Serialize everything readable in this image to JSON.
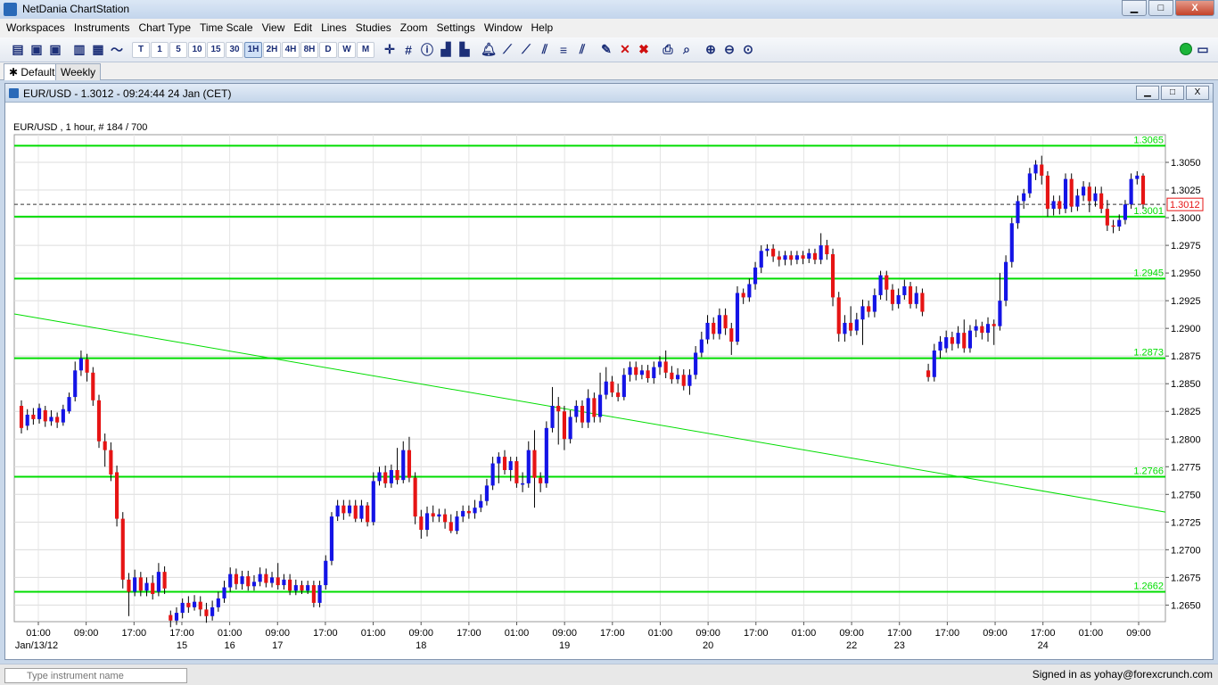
{
  "window": {
    "title": "NetDania ChartStation",
    "minimize": "▁",
    "maximize": "□",
    "close": "X"
  },
  "menu": [
    "Workspaces",
    "Instruments",
    "Chart Type",
    "Time Scale",
    "View",
    "Edit",
    "Lines",
    "Studies",
    "Zoom",
    "Settings",
    "Window",
    "Help"
  ],
  "toolbar": {
    "timescales": [
      "T",
      "1",
      "5",
      "10",
      "15",
      "30",
      "1H",
      "2H",
      "4H",
      "8H",
      "D",
      "W",
      "M"
    ],
    "active_timescale": "1H"
  },
  "tabs": {
    "default_label": "Default",
    "weekly_label": "Weekly"
  },
  "chart_window": {
    "title": "EUR/USD - 1.3012 - 09:24:44  24 Jan (CET)"
  },
  "status": {
    "search_placeholder": "Type instrument name",
    "signed_in": "Signed in as yohay@forexcrunch.com"
  },
  "chart_data": {
    "type": "candlestick",
    "info_label": "EUR/USD , 1 hour, # 184 / 700",
    "current_price": "1.3012",
    "ylim": [
      1.2635,
      1.3075
    ],
    "yticks": [
      "1.3050",
      "1.3025",
      "1.3000",
      "1.2975",
      "1.2950",
      "1.2925",
      "1.2900",
      "1.2875",
      "1.2850",
      "1.2825",
      "1.2800",
      "1.2775",
      "1.2750",
      "1.2725",
      "1.2700",
      "1.2675",
      "1.2650"
    ],
    "x_time_labels": [
      "01:00",
      "09:00",
      "17:00",
      "17:00",
      "01:00",
      "09:00",
      "17:00",
      "01:00",
      "09:00",
      "17:00",
      "01:00",
      "09:00",
      "17:00",
      "01:00",
      "09:00",
      "17:00",
      "01:00",
      "09:00",
      "17:00",
      "17:00",
      "09:00",
      "17:00",
      "01:00",
      "09:00"
    ],
    "x_date_labels": [
      "Jan/13/12",
      "15",
      "16",
      "17",
      "18",
      "19",
      "20",
      "22",
      "23",
      "24"
    ],
    "horizontal_lines": [
      {
        "value": 1.3065,
        "label": "1.3065"
      },
      {
        "value": 1.3001,
        "label": "1.3001"
      },
      {
        "value": 1.2945,
        "label": "1.2945"
      },
      {
        "value": 1.2873,
        "label": "1.2873"
      },
      {
        "value": 1.2766,
        "label": "1.2766"
      },
      {
        "value": 1.2662,
        "label": "1.2662"
      }
    ],
    "trend_line": {
      "start": 1.2913,
      "end": 1.2734
    },
    "candles": [
      [
        1.283,
        1.281,
        1.2835,
        1.2805
      ],
      [
        1.2812,
        1.2822,
        1.2827,
        1.2808
      ],
      [
        1.2822,
        1.2818,
        1.2828,
        1.2813
      ],
      [
        1.2818,
        1.2828,
        1.2832,
        1.2814
      ],
      [
        1.2826,
        1.2816,
        1.283,
        1.2811
      ],
      [
        1.2816,
        1.282,
        1.2826,
        1.2812
      ],
      [
        1.282,
        1.2815,
        1.2824,
        1.281
      ],
      [
        1.2815,
        1.2827,
        1.2831,
        1.2812
      ],
      [
        1.2825,
        1.2838,
        1.2842,
        1.2823
      ],
      [
        1.2838,
        1.2862,
        1.287,
        1.2834
      ],
      [
        1.2862,
        1.2873,
        1.288,
        1.2857
      ],
      [
        1.2872,
        1.286,
        1.2877,
        1.2852
      ],
      [
        1.286,
        1.2835,
        1.2865,
        1.283
      ],
      [
        1.2835,
        1.2798,
        1.284,
        1.2792
      ],
      [
        1.2798,
        1.279,
        1.2805,
        1.2775
      ],
      [
        1.279,
        1.2768,
        1.2797,
        1.2762
      ],
      [
        1.277,
        1.2728,
        1.2776,
        1.2721
      ],
      [
        1.2728,
        1.2673,
        1.2734,
        1.2665
      ],
      [
        1.2673,
        1.2662,
        1.2679,
        1.264
      ],
      [
        1.2662,
        1.2675,
        1.2682,
        1.2658
      ],
      [
        1.2675,
        1.2663,
        1.268,
        1.2658
      ],
      [
        1.2663,
        1.267,
        1.2675,
        1.2658
      ],
      [
        1.267,
        1.266,
        1.2677,
        1.2655
      ],
      [
        1.2662,
        1.268,
        1.2688,
        1.2658
      ],
      [
        1.268,
        1.2665,
        1.2685,
        1.266
      ],
      [
        1.2641,
        1.2636,
        1.2645,
        1.263
      ],
      [
        1.2636,
        1.2643,
        1.2648,
        1.2632
      ],
      [
        1.2643,
        1.2652,
        1.2656,
        1.2638
      ],
      [
        1.2652,
        1.2648,
        1.2658,
        1.2643
      ],
      [
        1.2648,
        1.2653,
        1.2659,
        1.2645
      ],
      [
        1.2653,
        1.2646,
        1.2658,
        1.264
      ],
      [
        1.2646,
        1.264,
        1.2652,
        1.2634
      ],
      [
        1.264,
        1.2648,
        1.2654,
        1.2636
      ],
      [
        1.2648,
        1.2656,
        1.2662,
        1.2644
      ],
      [
        1.2656,
        1.2666,
        1.2672,
        1.2652
      ],
      [
        1.2666,
        1.2678,
        1.2684,
        1.2662
      ],
      [
        1.2678,
        1.2669,
        1.2683,
        1.2664
      ],
      [
        1.2669,
        1.2676,
        1.2681,
        1.2664
      ],
      [
        1.2676,
        1.2667,
        1.2681,
        1.2663
      ],
      [
        1.2667,
        1.2671,
        1.2677,
        1.2663
      ],
      [
        1.2671,
        1.2678,
        1.2684,
        1.2667
      ],
      [
        1.2678,
        1.267,
        1.2683,
        1.2666
      ],
      [
        1.267,
        1.2675,
        1.268,
        1.2666
      ],
      [
        1.2675,
        1.2668,
        1.2688,
        1.2664
      ],
      [
        1.2668,
        1.2673,
        1.2678,
        1.2664
      ],
      [
        1.2673,
        1.2663,
        1.2678,
        1.2659
      ],
      [
        1.2663,
        1.2668,
        1.2673,
        1.2659
      ],
      [
        1.2668,
        1.2663,
        1.2672,
        1.266
      ],
      [
        1.2663,
        1.2668,
        1.2672,
        1.266
      ],
      [
        1.2668,
        1.2652,
        1.2672,
        1.2648
      ],
      [
        1.2652,
        1.2668,
        1.2672,
        1.2648
      ],
      [
        1.2668,
        1.269,
        1.2695,
        1.2664
      ],
      [
        1.269,
        1.273,
        1.2734,
        1.2686
      ],
      [
        1.273,
        1.274,
        1.2745,
        1.2726
      ],
      [
        1.274,
        1.2733,
        1.2745,
        1.2727
      ],
      [
        1.2733,
        1.274,
        1.2745,
        1.273
      ],
      [
        1.274,
        1.2728,
        1.2745,
        1.2725
      ],
      [
        1.2728,
        1.274,
        1.2745,
        1.2725
      ],
      [
        1.274,
        1.2725,
        1.2743,
        1.2721
      ],
      [
        1.2725,
        1.2762,
        1.277,
        1.2722
      ],
      [
        1.2762,
        1.277,
        1.2775,
        1.2758
      ],
      [
        1.277,
        1.276,
        1.2776,
        1.2756
      ],
      [
        1.276,
        1.2772,
        1.2777,
        1.2756
      ],
      [
        1.2772,
        1.2763,
        1.2792,
        1.2759
      ],
      [
        1.2763,
        1.279,
        1.2798,
        1.276
      ],
      [
        1.279,
        1.2765,
        1.2802,
        1.2761
      ],
      [
        1.2765,
        1.273,
        1.277,
        1.2723
      ],
      [
        1.273,
        1.2718,
        1.2736,
        1.271
      ],
      [
        1.2718,
        1.2733,
        1.2739,
        1.2712
      ],
      [
        1.2733,
        1.273,
        1.274,
        1.2725
      ],
      [
        1.273,
        1.2732,
        1.2737,
        1.2725
      ],
      [
        1.2732,
        1.2725,
        1.2737,
        1.2719
      ],
      [
        1.2725,
        1.2717,
        1.2732,
        1.2715
      ],
      [
        1.2717,
        1.273,
        1.2735,
        1.2714
      ],
      [
        1.273,
        1.2735,
        1.274,
        1.2725
      ],
      [
        1.2735,
        1.2733,
        1.274,
        1.2728
      ],
      [
        1.2733,
        1.2738,
        1.2745,
        1.2728
      ],
      [
        1.2738,
        1.2744,
        1.275,
        1.2734
      ],
      [
        1.2744,
        1.2758,
        1.2764,
        1.274
      ],
      [
        1.2758,
        1.2778,
        1.2784,
        1.2754
      ],
      [
        1.2778,
        1.2784,
        1.2788,
        1.276
      ],
      [
        1.2784,
        1.2772,
        1.279,
        1.2768
      ],
      [
        1.2772,
        1.278,
        1.2784,
        1.2762
      ],
      [
        1.278,
        1.276,
        1.2784,
        1.2756
      ],
      [
        1.276,
        1.276,
        1.277,
        1.2752
      ],
      [
        1.276,
        1.279,
        1.2798,
        1.2756
      ],
      [
        1.279,
        1.2765,
        1.2808,
        1.2738
      ],
      [
        1.2765,
        1.276,
        1.277,
        1.2752
      ],
      [
        1.276,
        1.281,
        1.2816,
        1.2756
      ],
      [
        1.281,
        1.283,
        1.2847,
        1.2806
      ],
      [
        1.283,
        1.2825,
        1.2838,
        1.2795
      ],
      [
        1.2825,
        1.28,
        1.283,
        1.279
      ],
      [
        1.28,
        1.282,
        1.2826,
        1.2796
      ],
      [
        1.282,
        1.283,
        1.2835,
        1.2815
      ],
      [
        1.283,
        1.2815,
        1.2835,
        1.281
      ],
      [
        1.2815,
        1.2837,
        1.2845,
        1.281
      ],
      [
        1.2837,
        1.282,
        1.2842,
        1.2815
      ],
      [
        1.282,
        1.284,
        1.286,
        1.2815
      ],
      [
        1.284,
        1.2852,
        1.2865,
        1.2836
      ],
      [
        1.2852,
        1.2842,
        1.2857,
        1.2838
      ],
      [
        1.2842,
        1.2838,
        1.285,
        1.2834
      ],
      [
        1.2838,
        1.2858,
        1.2864,
        1.2835
      ],
      [
        1.2858,
        1.2865,
        1.287,
        1.2852
      ],
      [
        1.2865,
        1.2858,
        1.287,
        1.2853
      ],
      [
        1.2858,
        1.2862,
        1.2867,
        1.2854
      ],
      [
        1.2862,
        1.2855,
        1.2867,
        1.2851
      ],
      [
        1.2855,
        1.2865,
        1.287,
        1.285
      ],
      [
        1.2865,
        1.287,
        1.2875,
        1.2858
      ],
      [
        1.287,
        1.286,
        1.288,
        1.2855
      ],
      [
        1.286,
        1.2854,
        1.2866,
        1.285
      ],
      [
        1.2854,
        1.2858,
        1.2864,
        1.285
      ],
      [
        1.2858,
        1.2848,
        1.2863,
        1.2844
      ],
      [
        1.2848,
        1.2858,
        1.2863,
        1.284
      ],
      [
        1.2858,
        1.2878,
        1.2884,
        1.2854
      ],
      [
        1.2878,
        1.289,
        1.2897,
        1.2874
      ],
      [
        1.289,
        1.2905,
        1.2912,
        1.2886
      ],
      [
        1.2905,
        1.2895,
        1.291,
        1.289
      ],
      [
        1.2895,
        1.2912,
        1.2918,
        1.289
      ],
      [
        1.2912,
        1.29,
        1.2918,
        1.2894
      ],
      [
        1.29,
        1.2888,
        1.2905,
        1.2876
      ],
      [
        1.2888,
        1.2932,
        1.2938,
        1.2885
      ],
      [
        1.2932,
        1.2928,
        1.2936,
        1.2922
      ],
      [
        1.2928,
        1.294,
        1.2945,
        1.2924
      ],
      [
        1.294,
        1.2955,
        1.296,
        1.2935
      ],
      [
        1.2955,
        1.297,
        1.2975,
        1.295
      ],
      [
        1.297,
        1.2972,
        1.2976,
        1.2965
      ],
      [
        1.2972,
        1.2965,
        1.2976,
        1.296
      ],
      [
        1.2965,
        1.2962,
        1.297,
        1.2956
      ],
      [
        1.2962,
        1.2966,
        1.297,
        1.2957
      ],
      [
        1.2966,
        1.2962,
        1.297,
        1.2957
      ],
      [
        1.2962,
        1.2966,
        1.297,
        1.2958
      ],
      [
        1.2966,
        1.2963,
        1.297,
        1.2958
      ],
      [
        1.2963,
        1.2968,
        1.2972,
        1.2959
      ],
      [
        1.2968,
        1.2962,
        1.2972,
        1.2958
      ],
      [
        1.2962,
        1.2975,
        1.2986,
        1.2958
      ],
      [
        1.2975,
        1.2967,
        1.298,
        1.2962
      ],
      [
        1.2967,
        1.2928,
        1.2972,
        1.292
      ],
      [
        1.2928,
        1.2895,
        1.2933,
        1.2888
      ],
      [
        1.2895,
        1.2905,
        1.2912,
        1.2888
      ],
      [
        1.2905,
        1.2898,
        1.292,
        1.2893
      ],
      [
        1.2898,
        1.2908,
        1.2914,
        1.2894
      ],
      [
        1.2908,
        1.292,
        1.2926,
        1.2885
      ],
      [
        1.292,
        1.2915,
        1.2925,
        1.291
      ],
      [
        1.2915,
        1.293,
        1.2936,
        1.291
      ],
      [
        1.293,
        1.2948,
        1.2952,
        1.2926
      ],
      [
        1.2948,
        1.2935,
        1.2952,
        1.2925
      ],
      [
        1.2935,
        1.2922,
        1.294,
        1.2916
      ],
      [
        1.2922,
        1.293,
        1.2936,
        1.2918
      ],
      [
        1.293,
        1.2938,
        1.2944,
        1.2926
      ],
      [
        1.2938,
        1.2922,
        1.2942,
        1.2918
      ],
      [
        1.2922,
        1.2932,
        1.2938,
        1.2918
      ],
      [
        1.2932,
        1.2915,
        1.2936,
        1.2911
      ],
      [
        1.2862,
        1.2856,
        1.2868,
        1.2852
      ],
      [
        1.2856,
        1.288,
        1.2886,
        1.2852
      ],
      [
        1.288,
        1.2888,
        1.2893,
        1.2873
      ],
      [
        1.2882,
        1.2892,
        1.2898,
        1.2878
      ],
      [
        1.2892,
        1.2886,
        1.2897,
        1.288
      ],
      [
        1.2886,
        1.2896,
        1.2902,
        1.2882
      ],
      [
        1.2896,
        1.2882,
        1.2908,
        1.2878
      ],
      [
        1.2882,
        1.2898,
        1.2903,
        1.2878
      ],
      [
        1.2898,
        1.2902,
        1.2908,
        1.2892
      ],
      [
        1.2902,
        1.2896,
        1.2906,
        1.289
      ],
      [
        1.2896,
        1.2904,
        1.291,
        1.2888
      ],
      [
        1.2904,
        1.2902,
        1.2908,
        1.2885
      ],
      [
        1.2902,
        1.2925,
        1.295,
        1.2898
      ],
      [
        1.2925,
        1.296,
        1.2966,
        1.292
      ],
      [
        1.296,
        1.2995,
        1.3,
        1.2955
      ],
      [
        1.2995,
        1.3015,
        1.302,
        1.299
      ],
      [
        1.3015,
        1.3022,
        1.3026,
        1.3008
      ],
      [
        1.3022,
        1.304,
        1.3045,
        1.3018
      ],
      [
        1.304,
        1.3048,
        1.3052,
        1.3034
      ],
      [
        1.3048,
        1.3038,
        1.3056,
        1.303
      ],
      [
        1.3038,
        1.3008,
        1.3042,
        1.3001
      ],
      [
        1.3008,
        1.3015,
        1.302,
        1.3002
      ],
      [
        1.3015,
        1.3008,
        1.302,
        1.3003
      ],
      [
        1.3008,
        1.3035,
        1.304,
        1.3004
      ],
      [
        1.3035,
        1.301,
        1.304,
        1.3005
      ],
      [
        1.301,
        1.302,
        1.3026,
        1.3006
      ],
      [
        1.302,
        1.3028,
        1.3033,
        1.3015
      ],
      [
        1.3028,
        1.3015,
        1.3032,
        1.3005
      ],
      [
        1.3015,
        1.3022,
        1.3028,
        1.301
      ],
      [
        1.3022,
        1.3008,
        1.3028,
        1.3004
      ],
      [
        1.3008,
        1.2993,
        1.3016,
        1.2988
      ],
      [
        1.2993,
        1.2992,
        1.2998,
        1.2986
      ],
      [
        1.2992,
        1.2998,
        1.3003,
        1.2988
      ],
      [
        1.2998,
        1.3012,
        1.3016,
        1.2994
      ],
      [
        1.3012,
        1.3035,
        1.304,
        1.3008
      ],
      [
        1.3035,
        1.3038,
        1.3042,
        1.303
      ],
      [
        1.3038,
        1.3012,
        1.304,
        1.3008
      ]
    ],
    "up_color": "#1414e6",
    "down_color": "#e61414",
    "line_color": "#00dd00"
  }
}
